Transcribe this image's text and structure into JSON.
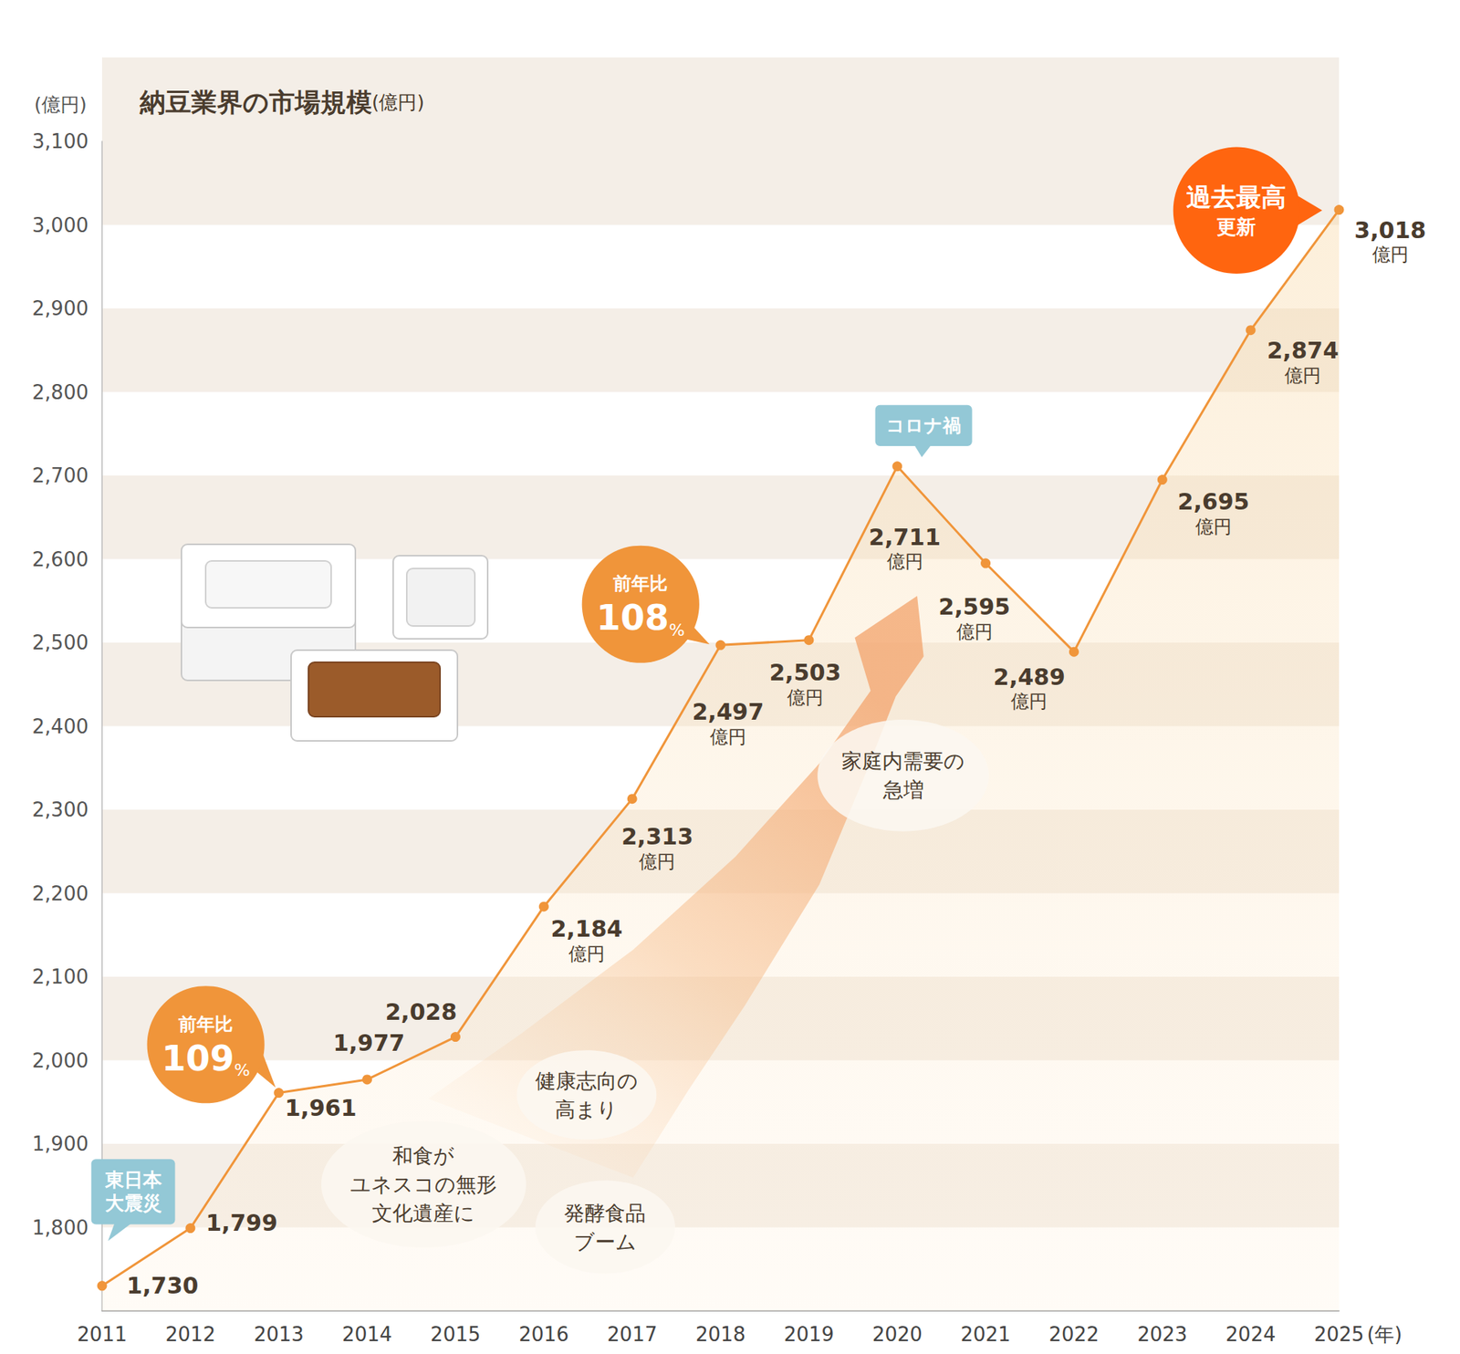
{
  "chart_data": {
    "type": "line",
    "title": "納豆業界の市場規模",
    "title_unit": "(億円)",
    "y_label": "(億円)",
    "x_label": "(年)",
    "categories": [
      "2011",
      "2012",
      "2013",
      "2014",
      "2015",
      "2016",
      "2017",
      "2018",
      "2019",
      "2020",
      "2021",
      "2022",
      "2023",
      "2024",
      "2025"
    ],
    "values": [
      1730,
      1799,
      1961,
      1977,
      2028,
      2184,
      2313,
      2497,
      2503,
      2711,
      2595,
      2489,
      2695,
      2874,
      3018
    ],
    "value_labels": [
      "1,730",
      "1,799",
      "1,961",
      "1,977",
      "2,028",
      "2,184\n億円",
      "2,313\n億円",
      "2,497\n億円",
      "2,503\n億円",
      "2,711\n億円",
      "2,595\n億円",
      "2,489\n億円",
      "2,695\n億円",
      "2,874\n億円",
      "3,018\n億円"
    ],
    "color": "#f0953a",
    "marker": "circle",
    "data_labels": true,
    "grid": true,
    "ylim": [
      1700,
      3100
    ],
    "yticks": [
      {
        "value": 1800,
        "label": "1,800"
      },
      {
        "value": 1900,
        "label": "1,900"
      },
      {
        "value": 2000,
        "label": "2,000"
      },
      {
        "value": 2100,
        "label": "2,100"
      },
      {
        "value": 2200,
        "label": "2,200"
      },
      {
        "value": 2300,
        "label": "2,300"
      },
      {
        "value": 2400,
        "label": "2,400"
      },
      {
        "value": 2500,
        "label": "2,500"
      },
      {
        "value": 2600,
        "label": "2,600"
      },
      {
        "value": 2700,
        "label": "2,700"
      },
      {
        "value": 2800,
        "label": "2,800"
      },
      {
        "value": 2900,
        "label": "2,900"
      },
      {
        "value": 3000,
        "label": "3,000"
      },
      {
        "value": 3100,
        "label": "3,100"
      }
    ],
    "annotations": [
      {
        "text": "東日本\n大震災"
      },
      {
        "text": "コロナ禍"
      },
      {
        "text": "前年比\n109%"
      },
      {
        "text": "前年比\n108%"
      },
      {
        "text": "過去最高\n更新"
      },
      {
        "text": "和食が\nユネスコの無形\n文化遺産に"
      },
      {
        "text": "健康志向の\n高まり"
      },
      {
        "text": "発酵食品\nブーム"
      },
      {
        "text": "家庭内需要の\n急増"
      }
    ]
  }
}
